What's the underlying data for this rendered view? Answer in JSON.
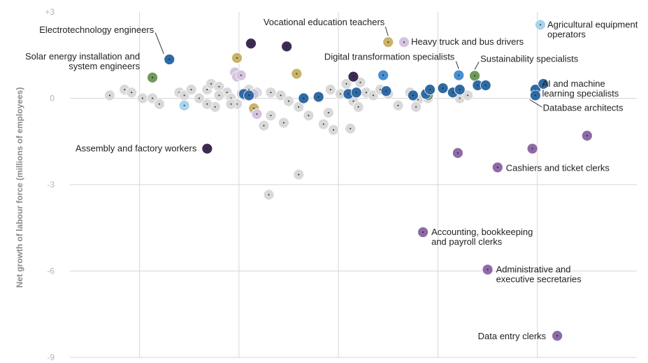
{
  "chart_data": {
    "type": "scatter",
    "title": "",
    "xlabel": "",
    "ylabel": "Net growth of labour force (millions of employees)",
    "xlim": [
      -1.3,
      4.4
    ],
    "ylim": [
      -9,
      3
    ],
    "y_ticks": [
      "+3",
      "0",
      "-3",
      "-6",
      "-9"
    ],
    "y_tick_values": [
      3,
      0,
      -3,
      -6,
      -9
    ],
    "x_grid_values": [
      -0.6,
      0.4,
      1.4,
      2.4,
      3.4
    ],
    "colors": {
      "grey": "#d9d9d9",
      "lightblue": "#a9d4ec",
      "blue": "#2f6aa4",
      "midblue": "#4a8fd0",
      "green": "#6f9a5c",
      "gold": "#c9b36b",
      "lilac": "#d4c4e0",
      "purple": "#8e6aa6",
      "dark": "#3d2b52",
      "gridline": "#d6d6d6"
    },
    "labels": [
      {
        "text": [
          "Electrotechnology engineers"
        ],
        "x": -0.3,
        "y": 1.35
      },
      {
        "text": [
          "Solar energy installation and",
          "system engineers"
        ],
        "x": -0.47,
        "y": 0.72
      },
      {
        "text": [
          "Vocational education teachers"
        ],
        "x": 1.9,
        "y": 1.95
      },
      {
        "text": [
          "Heavy truck and bus drivers"
        ],
        "x": 2.06,
        "y": 1.95
      },
      {
        "text": [
          "Digital transformation specialists"
        ],
        "x": 2.61,
        "y": 0.8
      },
      {
        "text": [
          "Sustainability specialists"
        ],
        "x": 2.77,
        "y": 0.78
      },
      {
        "text": [
          "Agricultural equipment",
          "operators"
        ],
        "x": 3.43,
        "y": 2.55
      },
      {
        "text": [
          "AI and machine",
          "learning specialists"
        ],
        "x": 3.37,
        "y": 0.5
      },
      {
        "text": [
          "Database architects"
        ],
        "x": 3.28,
        "y": 0.1
      },
      {
        "text": [
          "Assembly and factory workers"
        ],
        "x": 0.08,
        "y": -1.75
      },
      {
        "text": [
          "Cashiers and ticket clerks"
        ],
        "x": 3.0,
        "y": -2.4
      },
      {
        "text": [
          "Accounting, bookkeeping",
          "and payroll clerks"
        ],
        "x": 2.25,
        "y": -4.65
      },
      {
        "text": [
          "Administrative and",
          "executive secretaries"
        ],
        "x": 2.9,
        "y": -5.95
      },
      {
        "text": [
          "Data entry clerks"
        ],
        "x": 3.6,
        "y": -8.25
      }
    ],
    "series": [
      {
        "name": "grey",
        "points": [
          [
            -0.9,
            0.1
          ],
          [
            -0.75,
            0.3
          ],
          [
            -0.68,
            0.2
          ],
          [
            -0.57,
            0
          ],
          [
            -0.47,
            0
          ],
          [
            -0.4,
            -0.2
          ],
          [
            -0.2,
            0.2
          ],
          [
            -0.15,
            0.1
          ],
          [
            -0.08,
            0.3
          ],
          [
            0,
            0
          ],
          [
            0.08,
            0.3
          ],
          [
            0.12,
            0.5
          ],
          [
            0.2,
            0.4
          ],
          [
            0.28,
            0.2
          ],
          [
            0.32,
            0
          ],
          [
            0.38,
            -0.2
          ],
          [
            0.45,
            0.1
          ],
          [
            0.5,
            0.3
          ],
          [
            0.58,
            0.2
          ],
          [
            0.72,
            0.2
          ],
          [
            0.82,
            0.1
          ],
          [
            0.9,
            -0.1
          ],
          [
            1.0,
            -0.3
          ],
          [
            1.1,
            -0.6
          ],
          [
            1.25,
            -0.9
          ],
          [
            1.32,
            0.3
          ],
          [
            1.42,
            0.15
          ],
          [
            1.48,
            0.5
          ],
          [
            1.55,
            -0.1
          ],
          [
            1.62,
            0.55
          ],
          [
            1.68,
            0.2
          ],
          [
            1.75,
            0.1
          ],
          [
            1.82,
            0.3
          ],
          [
            1.9,
            0.15
          ],
          [
            2.0,
            -0.25
          ],
          [
            2.12,
            0.2
          ],
          [
            2.2,
            -0.05
          ],
          [
            2.3,
            0
          ],
          [
            2.62,
            0.0
          ],
          [
            2.7,
            0.1
          ],
          [
            0.55,
            -0.4
          ],
          [
            0.65,
            -0.95
          ],
          [
            0.72,
            -0.6
          ],
          [
            0.85,
            -0.85
          ],
          [
            1.3,
            -0.5
          ],
          [
            1.35,
            -1.1
          ],
          [
            1.52,
            -1.05
          ],
          [
            2.18,
            -0.3
          ],
          [
            0.32,
            -0.2
          ],
          [
            1.0,
            -2.65
          ],
          [
            0.7,
            -3.35
          ],
          [
            1.6,
            -0.3
          ],
          [
            0.16,
            -0.3
          ],
          [
            0.08,
            -0.2
          ],
          [
            0.2,
            0.1
          ]
        ]
      },
      {
        "name": "lightblue",
        "points": [
          [
            -0.15,
            -0.25
          ],
          [
            3.43,
            2.55
          ]
        ]
      },
      {
        "name": "gold",
        "points": [
          [
            0.38,
            1.4
          ],
          [
            0.98,
            0.85
          ],
          [
            0.55,
            -0.35
          ],
          [
            1.9,
            1.95
          ]
        ]
      },
      {
        "name": "lilac",
        "points": [
          [
            0.36,
            0.9
          ],
          [
            0.38,
            0.75
          ],
          [
            0.42,
            0.8
          ],
          [
            0.43,
            0.15
          ],
          [
            0.55,
            0.15
          ],
          [
            0.58,
            -0.55
          ],
          [
            2.06,
            1.95
          ]
        ]
      },
      {
        "name": "green",
        "points": [
          [
            -0.47,
            0.72
          ],
          [
            2.3,
            0.1
          ],
          [
            2.77,
            0.78
          ]
        ]
      },
      {
        "name": "midblue",
        "points": [
          [
            1.85,
            0.8
          ],
          [
            2.61,
            0.8
          ]
        ]
      },
      {
        "name": "blue",
        "points": [
          [
            -0.3,
            1.35
          ],
          [
            0.45,
            0.15
          ],
          [
            0.5,
            0.1
          ],
          [
            1.05,
            0
          ],
          [
            1.2,
            0.05
          ],
          [
            1.5,
            0.15
          ],
          [
            1.58,
            0.2
          ],
          [
            1.88,
            0.25
          ],
          [
            2.15,
            0.1
          ],
          [
            2.28,
            0.15
          ],
          [
            2.32,
            0.3
          ],
          [
            2.45,
            0.35
          ],
          [
            2.55,
            0.2
          ],
          [
            2.62,
            0.3
          ],
          [
            2.8,
            0.45
          ],
          [
            2.88,
            0.45
          ],
          [
            3.38,
            0.3
          ],
          [
            3.46,
            0.5
          ],
          [
            3.38,
            0.1
          ]
        ]
      },
      {
        "name": "dark",
        "points": [
          [
            0.52,
            1.9
          ],
          [
            0.88,
            1.8
          ],
          [
            1.55,
            0.75
          ],
          [
            0.08,
            -1.75
          ]
        ]
      },
      {
        "name": "purple",
        "points": [
          [
            2.6,
            -1.9
          ],
          [
            3.0,
            -2.4
          ],
          [
            3.35,
            -1.75
          ],
          [
            3.9,
            -1.3
          ],
          [
            2.25,
            -4.65
          ],
          [
            2.9,
            -5.95
          ],
          [
            3.6,
            -8.25
          ]
        ]
      }
    ]
  }
}
